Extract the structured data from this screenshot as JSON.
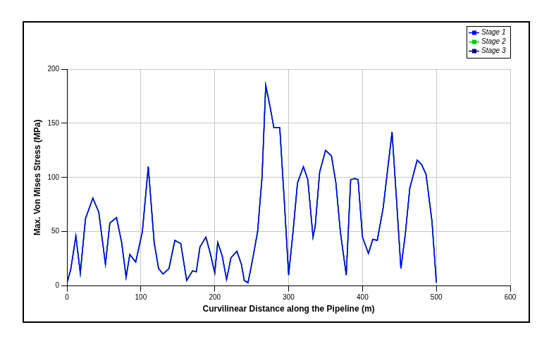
{
  "chart_data": {
    "type": "line",
    "x_label": "Curvilinear Distance along the Pipeline (m)",
    "y_label": "Max. Von Mises Stress (MPa)",
    "x": [
      0,
      5,
      12,
      18,
      25,
      35,
      43,
      52,
      58,
      67,
      74,
      80,
      85,
      93,
      102,
      110,
      118,
      124,
      130,
      138,
      146,
      154,
      162,
      170,
      175,
      180,
      188,
      194,
      200,
      204,
      210,
      216,
      222,
      230,
      236,
      240,
      245,
      250,
      258,
      264,
      269,
      275,
      280,
      288,
      294,
      300,
      306,
      312,
      320,
      326,
      333,
      336,
      342,
      350,
      358,
      364,
      370,
      378,
      384,
      390,
      394,
      400,
      408,
      414,
      420,
      428,
      440,
      446,
      452,
      458,
      464,
      474,
      480,
      486,
      494,
      500
    ],
    "series": [
      {
        "name": "Stage 1",
        "color": "#0000ff",
        "values": [
          3,
          15,
          46,
          12,
          62,
          81,
          68,
          20,
          58,
          63,
          40,
          8,
          29,
          22,
          50,
          110,
          40,
          16,
          11,
          16,
          42,
          39,
          5,
          14,
          13,
          36,
          45,
          30,
          12,
          40,
          28,
          6,
          26,
          32,
          20,
          5,
          3,
          20,
          50,
          100,
          185,
          165,
          146,
          146,
          80,
          10,
          50,
          95,
          110,
          98,
          45,
          55,
          105,
          125,
          120,
          95,
          50,
          10,
          98,
          99,
          98,
          45,
          30,
          43,
          42,
          72,
          142,
          80,
          16,
          48,
          90,
          116,
          112,
          103,
          60,
          3
        ]
      },
      {
        "name": "Stage 2",
        "color": "#00cc00",
        "values": [
          3,
          15,
          46,
          12,
          62,
          81,
          68,
          20,
          58,
          63,
          40,
          8,
          29,
          22,
          50,
          110,
          40,
          16,
          11,
          16,
          42,
          39,
          5,
          14,
          13,
          36,
          45,
          30,
          12,
          40,
          28,
          6,
          26,
          32,
          20,
          5,
          3,
          20,
          50,
          100,
          185,
          165,
          146,
          146,
          80,
          10,
          50,
          95,
          110,
          98,
          45,
          55,
          105,
          125,
          120,
          95,
          50,
          10,
          98,
          99,
          98,
          45,
          30,
          43,
          42,
          72,
          142,
          80,
          16,
          48,
          90,
          116,
          112,
          103,
          60,
          3
        ]
      },
      {
        "name": "Stage 3",
        "color": "#000080",
        "values": [
          3,
          15,
          46,
          12,
          62,
          81,
          68,
          20,
          58,
          63,
          40,
          8,
          29,
          22,
          50,
          110,
          40,
          16,
          11,
          16,
          42,
          39,
          5,
          14,
          13,
          36,
          45,
          30,
          12,
          40,
          28,
          6,
          26,
          32,
          20,
          5,
          3,
          20,
          50,
          100,
          185,
          165,
          146,
          146,
          80,
          10,
          50,
          95,
          110,
          98,
          45,
          55,
          105,
          125,
          120,
          95,
          50,
          10,
          98,
          99,
          98,
          45,
          30,
          43,
          42,
          72,
          142,
          80,
          16,
          48,
          90,
          116,
          112,
          103,
          60,
          3
        ]
      }
    ],
    "xlim": [
      0,
      600
    ],
    "xticks": [
      0,
      100,
      200,
      300,
      400,
      500,
      600
    ],
    "ylim": [
      0,
      200
    ],
    "yticks": [
      0,
      50,
      100,
      150,
      200
    ],
    "grid": true,
    "legend": "upper right"
  }
}
